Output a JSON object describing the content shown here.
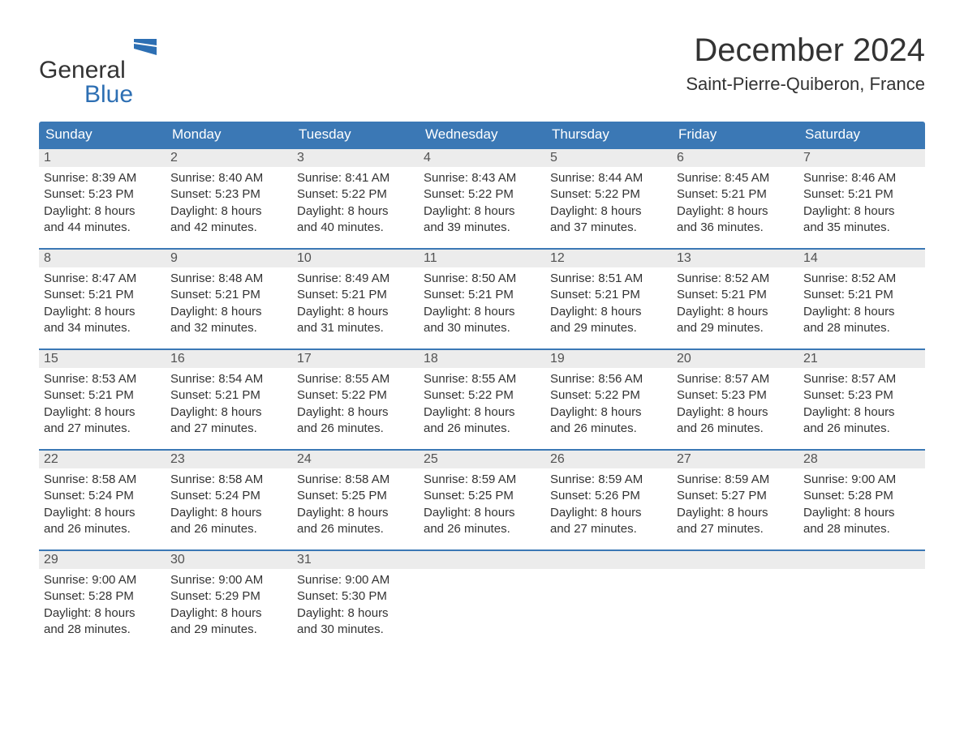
{
  "logo": {
    "word1": "General",
    "word2": "Blue"
  },
  "title": "December 2024",
  "location": "Saint-Pierre-Quiberon, France",
  "colors": {
    "header_bg": "#3b78b5",
    "header_text": "#ffffff",
    "daynum_bg": "#ececec",
    "text": "#333333",
    "week_border": "#3b78b5",
    "logo_blue": "#2d6fb3"
  },
  "weekdays": [
    "Sunday",
    "Monday",
    "Tuesday",
    "Wednesday",
    "Thursday",
    "Friday",
    "Saturday"
  ],
  "weeks": [
    [
      {
        "n": "1",
        "sunrise": "Sunrise: 8:39 AM",
        "sunset": "Sunset: 5:23 PM",
        "d1": "Daylight: 8 hours",
        "d2": "and 44 minutes."
      },
      {
        "n": "2",
        "sunrise": "Sunrise: 8:40 AM",
        "sunset": "Sunset: 5:23 PM",
        "d1": "Daylight: 8 hours",
        "d2": "and 42 minutes."
      },
      {
        "n": "3",
        "sunrise": "Sunrise: 8:41 AM",
        "sunset": "Sunset: 5:22 PM",
        "d1": "Daylight: 8 hours",
        "d2": "and 40 minutes."
      },
      {
        "n": "4",
        "sunrise": "Sunrise: 8:43 AM",
        "sunset": "Sunset: 5:22 PM",
        "d1": "Daylight: 8 hours",
        "d2": "and 39 minutes."
      },
      {
        "n": "5",
        "sunrise": "Sunrise: 8:44 AM",
        "sunset": "Sunset: 5:22 PM",
        "d1": "Daylight: 8 hours",
        "d2": "and 37 minutes."
      },
      {
        "n": "6",
        "sunrise": "Sunrise: 8:45 AM",
        "sunset": "Sunset: 5:21 PM",
        "d1": "Daylight: 8 hours",
        "d2": "and 36 minutes."
      },
      {
        "n": "7",
        "sunrise": "Sunrise: 8:46 AM",
        "sunset": "Sunset: 5:21 PM",
        "d1": "Daylight: 8 hours",
        "d2": "and 35 minutes."
      }
    ],
    [
      {
        "n": "8",
        "sunrise": "Sunrise: 8:47 AM",
        "sunset": "Sunset: 5:21 PM",
        "d1": "Daylight: 8 hours",
        "d2": "and 34 minutes."
      },
      {
        "n": "9",
        "sunrise": "Sunrise: 8:48 AM",
        "sunset": "Sunset: 5:21 PM",
        "d1": "Daylight: 8 hours",
        "d2": "and 32 minutes."
      },
      {
        "n": "10",
        "sunrise": "Sunrise: 8:49 AM",
        "sunset": "Sunset: 5:21 PM",
        "d1": "Daylight: 8 hours",
        "d2": "and 31 minutes."
      },
      {
        "n": "11",
        "sunrise": "Sunrise: 8:50 AM",
        "sunset": "Sunset: 5:21 PM",
        "d1": "Daylight: 8 hours",
        "d2": "and 30 minutes."
      },
      {
        "n": "12",
        "sunrise": "Sunrise: 8:51 AM",
        "sunset": "Sunset: 5:21 PM",
        "d1": "Daylight: 8 hours",
        "d2": "and 29 minutes."
      },
      {
        "n": "13",
        "sunrise": "Sunrise: 8:52 AM",
        "sunset": "Sunset: 5:21 PM",
        "d1": "Daylight: 8 hours",
        "d2": "and 29 minutes."
      },
      {
        "n": "14",
        "sunrise": "Sunrise: 8:52 AM",
        "sunset": "Sunset: 5:21 PM",
        "d1": "Daylight: 8 hours",
        "d2": "and 28 minutes."
      }
    ],
    [
      {
        "n": "15",
        "sunrise": "Sunrise: 8:53 AM",
        "sunset": "Sunset: 5:21 PM",
        "d1": "Daylight: 8 hours",
        "d2": "and 27 minutes."
      },
      {
        "n": "16",
        "sunrise": "Sunrise: 8:54 AM",
        "sunset": "Sunset: 5:21 PM",
        "d1": "Daylight: 8 hours",
        "d2": "and 27 minutes."
      },
      {
        "n": "17",
        "sunrise": "Sunrise: 8:55 AM",
        "sunset": "Sunset: 5:22 PM",
        "d1": "Daylight: 8 hours",
        "d2": "and 26 minutes."
      },
      {
        "n": "18",
        "sunrise": "Sunrise: 8:55 AM",
        "sunset": "Sunset: 5:22 PM",
        "d1": "Daylight: 8 hours",
        "d2": "and 26 minutes."
      },
      {
        "n": "19",
        "sunrise": "Sunrise: 8:56 AM",
        "sunset": "Sunset: 5:22 PM",
        "d1": "Daylight: 8 hours",
        "d2": "and 26 minutes."
      },
      {
        "n": "20",
        "sunrise": "Sunrise: 8:57 AM",
        "sunset": "Sunset: 5:23 PM",
        "d1": "Daylight: 8 hours",
        "d2": "and 26 minutes."
      },
      {
        "n": "21",
        "sunrise": "Sunrise: 8:57 AM",
        "sunset": "Sunset: 5:23 PM",
        "d1": "Daylight: 8 hours",
        "d2": "and 26 minutes."
      }
    ],
    [
      {
        "n": "22",
        "sunrise": "Sunrise: 8:58 AM",
        "sunset": "Sunset: 5:24 PM",
        "d1": "Daylight: 8 hours",
        "d2": "and 26 minutes."
      },
      {
        "n": "23",
        "sunrise": "Sunrise: 8:58 AM",
        "sunset": "Sunset: 5:24 PM",
        "d1": "Daylight: 8 hours",
        "d2": "and 26 minutes."
      },
      {
        "n": "24",
        "sunrise": "Sunrise: 8:58 AM",
        "sunset": "Sunset: 5:25 PM",
        "d1": "Daylight: 8 hours",
        "d2": "and 26 minutes."
      },
      {
        "n": "25",
        "sunrise": "Sunrise: 8:59 AM",
        "sunset": "Sunset: 5:25 PM",
        "d1": "Daylight: 8 hours",
        "d2": "and 26 minutes."
      },
      {
        "n": "26",
        "sunrise": "Sunrise: 8:59 AM",
        "sunset": "Sunset: 5:26 PM",
        "d1": "Daylight: 8 hours",
        "d2": "and 27 minutes."
      },
      {
        "n": "27",
        "sunrise": "Sunrise: 8:59 AM",
        "sunset": "Sunset: 5:27 PM",
        "d1": "Daylight: 8 hours",
        "d2": "and 27 minutes."
      },
      {
        "n": "28",
        "sunrise": "Sunrise: 9:00 AM",
        "sunset": "Sunset: 5:28 PM",
        "d1": "Daylight: 8 hours",
        "d2": "and 28 minutes."
      }
    ],
    [
      {
        "n": "29",
        "sunrise": "Sunrise: 9:00 AM",
        "sunset": "Sunset: 5:28 PM",
        "d1": "Daylight: 8 hours",
        "d2": "and 28 minutes."
      },
      {
        "n": "30",
        "sunrise": "Sunrise: 9:00 AM",
        "sunset": "Sunset: 5:29 PM",
        "d1": "Daylight: 8 hours",
        "d2": "and 29 minutes."
      },
      {
        "n": "31",
        "sunrise": "Sunrise: 9:00 AM",
        "sunset": "Sunset: 5:30 PM",
        "d1": "Daylight: 8 hours",
        "d2": "and 30 minutes."
      },
      {
        "empty": true
      },
      {
        "empty": true
      },
      {
        "empty": true
      },
      {
        "empty": true
      }
    ]
  ]
}
